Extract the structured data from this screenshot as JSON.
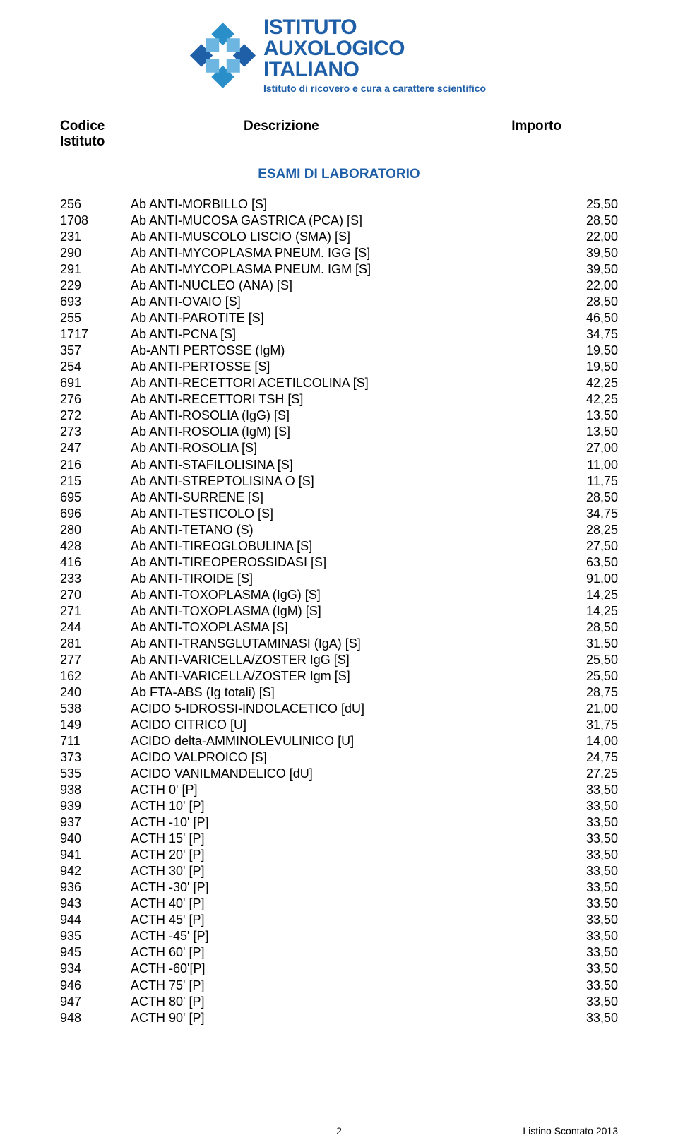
{
  "logo": {
    "line1": "ISTITUTO",
    "line2": "AUXOLOGICO",
    "line3": "ITALIANO",
    "subtitle": "Istituto di ricovero e cura a carattere scientifico",
    "text_color": "#1f5fa8",
    "main_fontsize": 30,
    "sub_fontsize": 14
  },
  "headers": {
    "col1_line1": "Codice",
    "col1_line2": "Istituto",
    "col2": "Descrizione",
    "col3": "Importo",
    "color": "#000000",
    "fontsize": 19
  },
  "section_title": {
    "text": "ESAMI DI LABORATORIO",
    "color": "#1f5fa8",
    "fontsize": 19
  },
  "table": {
    "fontsize": 18,
    "text_color": "#000000",
    "rows": [
      {
        "code": "256",
        "desc": "Ab ANTI-MORBILLO [S]",
        "amount": "25,50"
      },
      {
        "code": "1708",
        "desc": "Ab ANTI-MUCOSA GASTRICA (PCA) [S]",
        "amount": "28,50"
      },
      {
        "code": "231",
        "desc": "Ab ANTI-MUSCOLO LISCIO (SMA) [S]",
        "amount": "22,00"
      },
      {
        "code": "290",
        "desc": "Ab ANTI-MYCOPLASMA PNEUM. IGG [S]",
        "amount": "39,50"
      },
      {
        "code": "291",
        "desc": "Ab ANTI-MYCOPLASMA PNEUM. IGM [S]",
        "amount": "39,50"
      },
      {
        "code": "229",
        "desc": "Ab ANTI-NUCLEO (ANA) [S]",
        "amount": "22,00"
      },
      {
        "code": "693",
        "desc": "Ab ANTI-OVAIO [S]",
        "amount": "28,50"
      },
      {
        "code": "255",
        "desc": "Ab ANTI-PAROTITE [S]",
        "amount": "46,50"
      },
      {
        "code": "1717",
        "desc": "Ab ANTI-PCNA [S]",
        "amount": "34,75"
      },
      {
        "code": "357",
        "desc": "Ab-ANTI PERTOSSE (IgM)",
        "amount": "19,50"
      },
      {
        "code": "254",
        "desc": "Ab ANTI-PERTOSSE [S]",
        "amount": "19,50"
      },
      {
        "code": "691",
        "desc": "Ab ANTI-RECETTORI ACETILCOLINA [S]",
        "amount": "42,25"
      },
      {
        "code": "276",
        "desc": "Ab ANTI-RECETTORI TSH [S]",
        "amount": "42,25"
      },
      {
        "code": "272",
        "desc": "Ab ANTI-ROSOLIA (IgG) [S]",
        "amount": "13,50"
      },
      {
        "code": "273",
        "desc": "Ab ANTI-ROSOLIA (IgM) [S]",
        "amount": "13,50"
      },
      {
        "code": "247",
        "desc": "Ab ANTI-ROSOLIA [S]",
        "amount": "27,00"
      },
      {
        "code": "216",
        "desc": "Ab ANTI-STAFILOLISINA [S]",
        "amount": "11,00"
      },
      {
        "code": "215",
        "desc": "Ab ANTI-STREPTOLISINA O [S]",
        "amount": "11,75"
      },
      {
        "code": "695",
        "desc": "Ab ANTI-SURRENE [S]",
        "amount": "28,50"
      },
      {
        "code": "696",
        "desc": "Ab ANTI-TESTICOLO [S]",
        "amount": "34,75"
      },
      {
        "code": "280",
        "desc": "Ab ANTI-TETANO (S)",
        "amount": "28,25"
      },
      {
        "code": "428",
        "desc": "Ab ANTI-TIREOGLOBULINA [S]",
        "amount": "27,50"
      },
      {
        "code": "416",
        "desc": "Ab ANTI-TIREOPEROSSIDASI [S]",
        "amount": "63,50"
      },
      {
        "code": "233",
        "desc": "Ab ANTI-TIROIDE [S]",
        "amount": "91,00"
      },
      {
        "code": "270",
        "desc": "Ab ANTI-TOXOPLASMA (IgG) [S]",
        "amount": "14,25"
      },
      {
        "code": "271",
        "desc": "Ab ANTI-TOXOPLASMA (IgM) [S]",
        "amount": "14,25"
      },
      {
        "code": "244",
        "desc": "Ab ANTI-TOXOPLASMA [S]",
        "amount": "28,50"
      },
      {
        "code": "281",
        "desc": "Ab ANTI-TRANSGLUTAMINASI (IgA) [S]",
        "amount": "31,50"
      },
      {
        "code": "277",
        "desc": "Ab ANTI-VARICELLA/ZOSTER IgG  [S]",
        "amount": "25,50"
      },
      {
        "code": "162",
        "desc": "Ab ANTI-VARICELLA/ZOSTER Igm  [S]",
        "amount": "25,50"
      },
      {
        "code": "240",
        "desc": "Ab FTA-ABS (Ig totali) [S]",
        "amount": "28,75"
      },
      {
        "code": "538",
        "desc": "ACIDO 5-IDROSSI-INDOLACETICO [dU]",
        "amount": "21,00"
      },
      {
        "code": "149",
        "desc": "ACIDO CITRICO [U]",
        "amount": "31,75"
      },
      {
        "code": "711",
        "desc": "ACIDO delta-AMMINOLEVULINICO [U]",
        "amount": "14,00"
      },
      {
        "code": "373",
        "desc": "ACIDO VALPROICO [S]",
        "amount": "24,75"
      },
      {
        "code": "535",
        "desc": "ACIDO VANILMANDELICO [dU]",
        "amount": "27,25"
      },
      {
        "code": "938",
        "desc": "ACTH    0' [P]",
        "amount": "33,50"
      },
      {
        "code": "939",
        "desc": "ACTH   10' [P]",
        "amount": "33,50"
      },
      {
        "code": "937",
        "desc": "ACTH  -10' [P]",
        "amount": "33,50"
      },
      {
        "code": "940",
        "desc": "ACTH   15' [P]",
        "amount": "33,50"
      },
      {
        "code": "941",
        "desc": "ACTH   20' [P]",
        "amount": "33,50"
      },
      {
        "code": "942",
        "desc": "ACTH   30' [P]",
        "amount": "33,50"
      },
      {
        "code": "936",
        "desc": "ACTH  -30' [P]",
        "amount": "33,50"
      },
      {
        "code": "943",
        "desc": "ACTH   40' [P]",
        "amount": "33,50"
      },
      {
        "code": "944",
        "desc": "ACTH   45' [P]",
        "amount": "33,50"
      },
      {
        "code": "935",
        "desc": "ACTH  -45' [P]",
        "amount": "33,50"
      },
      {
        "code": "945",
        "desc": "ACTH   60' [P]",
        "amount": "33,50"
      },
      {
        "code": "934",
        "desc": "ACTH  -60'[P]",
        "amount": "33,50"
      },
      {
        "code": "946",
        "desc": "ACTH   75' [P]",
        "amount": "33,50"
      },
      {
        "code": "947",
        "desc": "ACTH   80' [P]",
        "amount": "33,50"
      },
      {
        "code": "948",
        "desc": "ACTH   90' [P]",
        "amount": "33,50"
      }
    ]
  },
  "footer": {
    "page_number": "2",
    "right_text": "Listino Scontato 2013",
    "fontsize": 14
  },
  "colors": {
    "background": "#ffffff",
    "text": "#000000",
    "accent": "#1f5fa8"
  }
}
